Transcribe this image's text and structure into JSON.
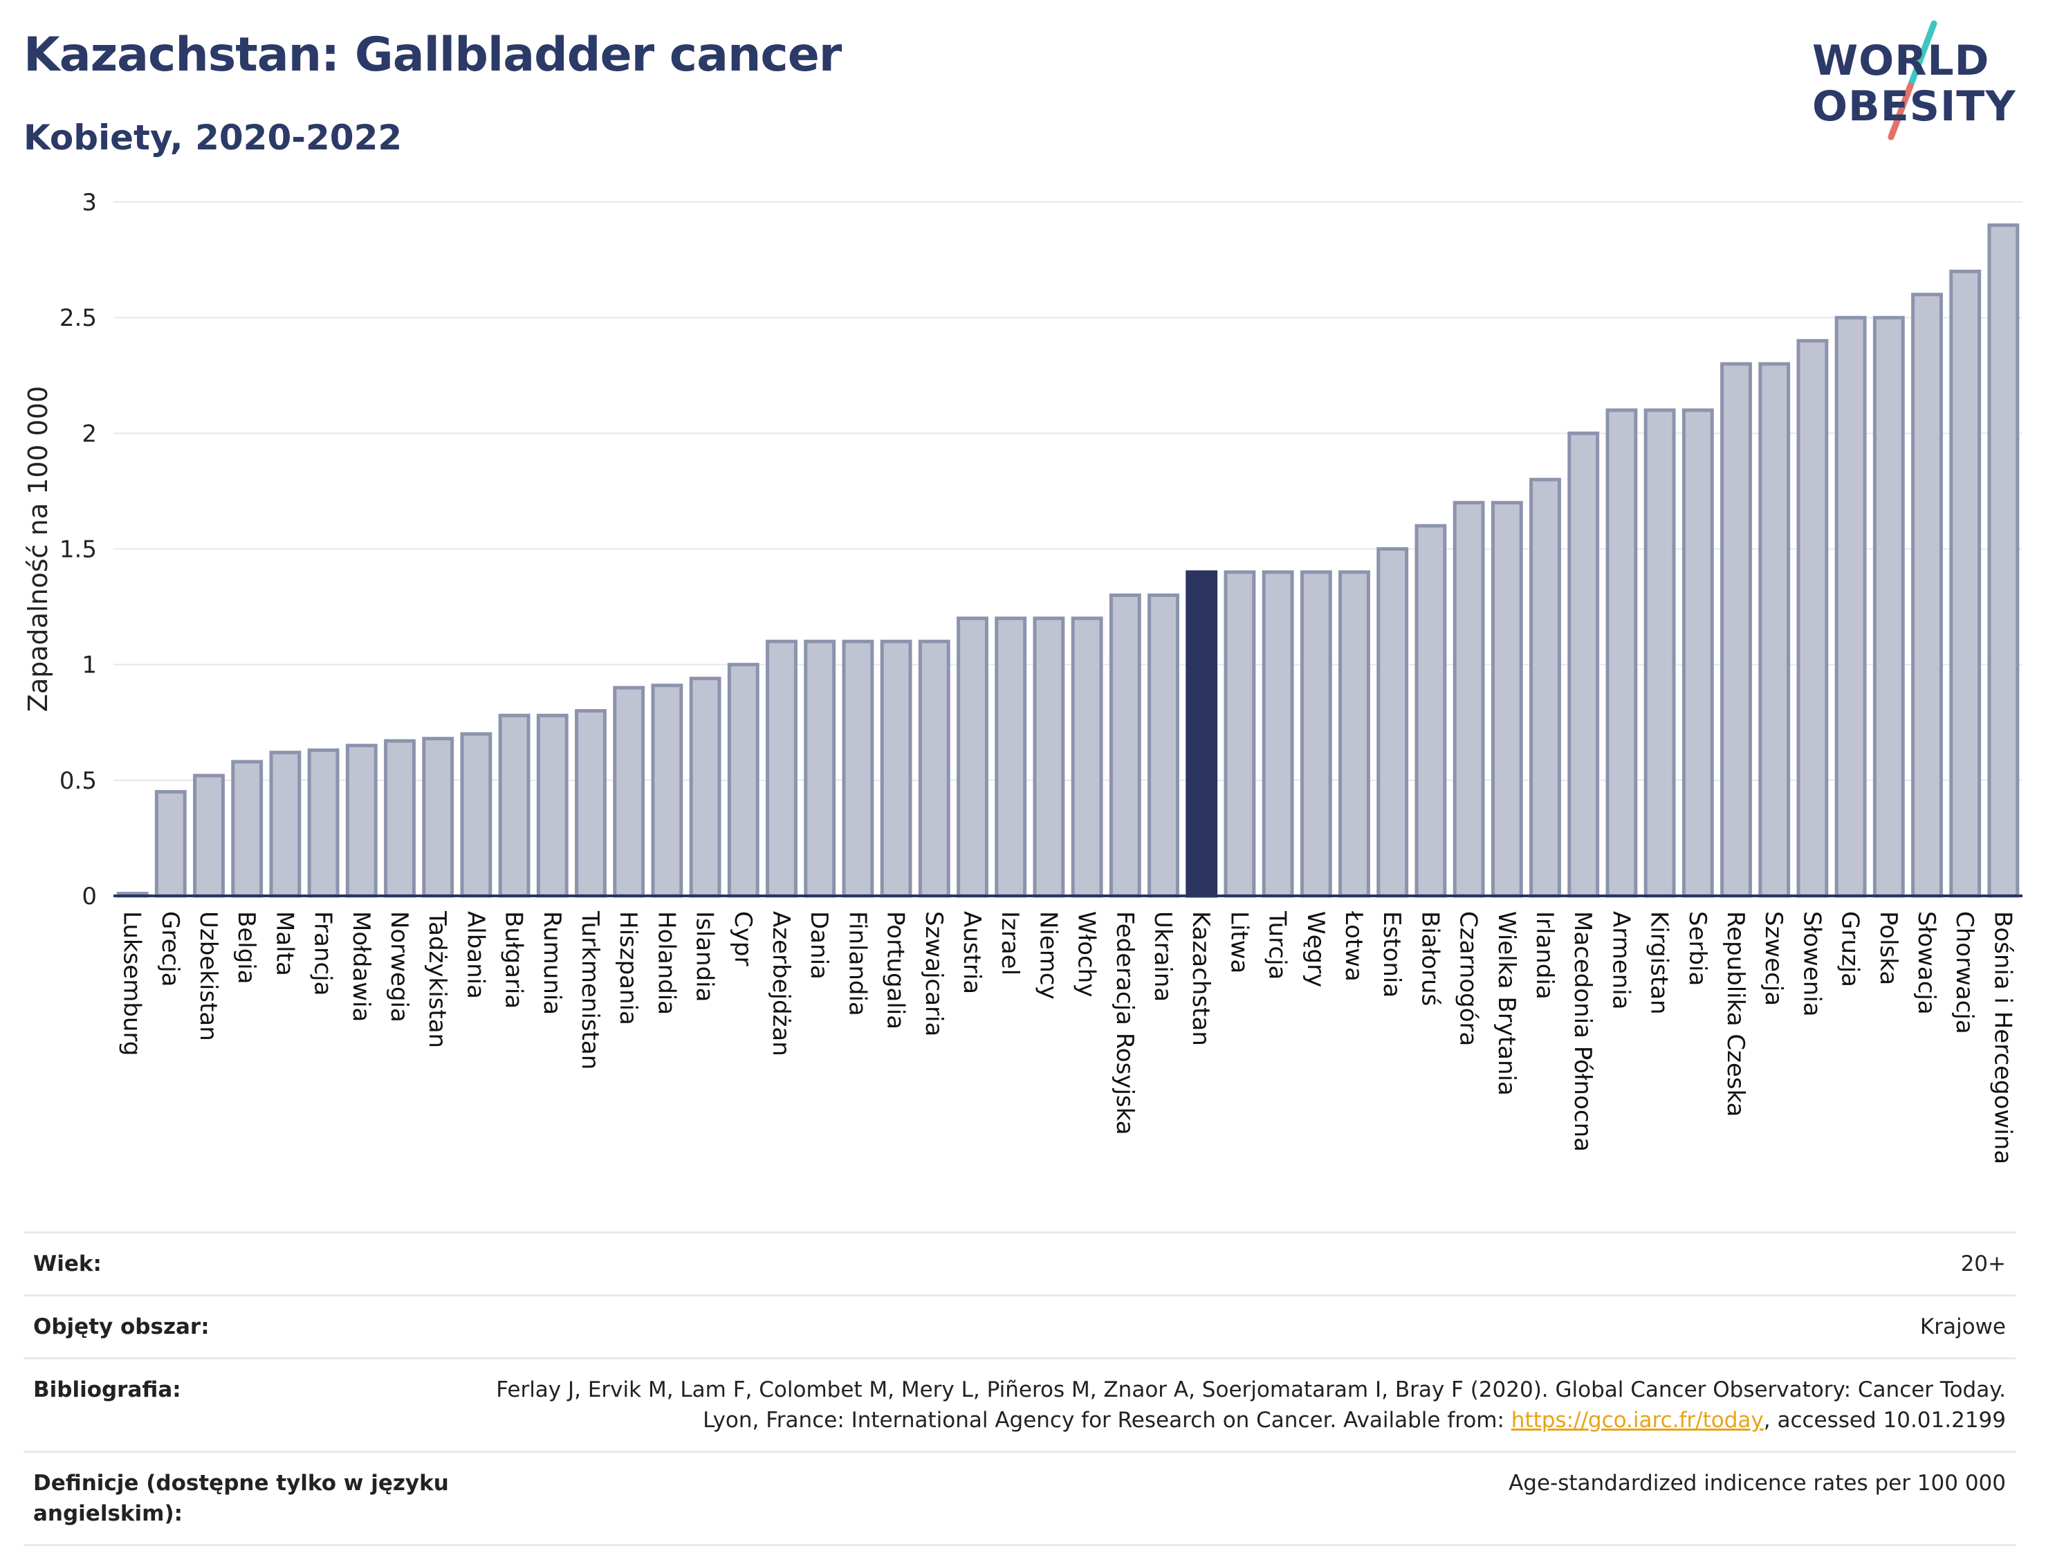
{
  "header": {
    "title": "Kazachstan: Gallbladder cancer",
    "subtitle": "Kobiety, 2020-2022"
  },
  "logo": {
    "line1": "WORLD",
    "line2": "OBESITY"
  },
  "colors": {
    "bar": "#bfc3d2",
    "bar_border": "#8c93ad",
    "highlight": "#2b3560",
    "text_dark": "#2b3a67",
    "accent_teal": "#3ec6c0",
    "accent_red": "#e8706a"
  },
  "chart_data": {
    "type": "bar",
    "ylabel": "Zapadalność na 100 000",
    "ylim": [
      0,
      3
    ],
    "yticks": [
      "0",
      "0.5",
      "1",
      "1.5",
      "2",
      "2.5",
      "3"
    ],
    "grid": true,
    "highlight": "Kazachstan",
    "categories": [
      "Luksemburg",
      "Grecja",
      "Uzbekistan",
      "Belgia",
      "Malta",
      "Francja",
      "Mołdawia",
      "Norwegia",
      "Tadżykistan",
      "Albania",
      "Bułgaria",
      "Rumunia",
      "Turkmenistan",
      "Hiszpania",
      "Holandia",
      "Islandia",
      "Cypr",
      "Azerbejdżan",
      "Dania",
      "Finlandia",
      "Portugalia",
      "Szwajcaria",
      "Austria",
      "Izrael",
      "Niemcy",
      "Włochy",
      "Federacja Rosyjska",
      "Ukraina",
      "Kazachstan",
      "Litwa",
      "Turcja",
      "Węgry",
      "Łotwa",
      "Estonia",
      "Białoruś",
      "Czarnogóra",
      "Wielka Brytania",
      "Irlandia",
      "Macedonia Północna",
      "Armenia",
      "Kirgistan",
      "Serbia",
      "Republika Czeska",
      "Szwecja",
      "Słowenia",
      "Gruzja",
      "Polska",
      "Słowacja",
      "Chorwacja",
      "Bośnia i Hercegowina"
    ],
    "values": [
      0.01,
      0.45,
      0.52,
      0.58,
      0.62,
      0.63,
      0.65,
      0.67,
      0.68,
      0.7,
      0.78,
      0.78,
      0.8,
      0.9,
      0.91,
      0.94,
      1.0,
      1.1,
      1.1,
      1.1,
      1.1,
      1.1,
      1.2,
      1.2,
      1.2,
      1.2,
      1.3,
      1.3,
      1.4,
      1.4,
      1.4,
      1.4,
      1.4,
      1.5,
      1.6,
      1.7,
      1.7,
      1.8,
      2.0,
      2.1,
      2.1,
      2.1,
      2.3,
      2.3,
      2.4,
      2.5,
      2.5,
      2.6,
      2.7,
      2.9
    ]
  },
  "meta": [
    {
      "label": "Wiek:",
      "value": "20+"
    },
    {
      "label": "Objęty obszar:",
      "value": "Krajowe"
    },
    {
      "label": "Bibliografia:",
      "value": "Ferlay J, Ervik M, Lam F, Colombet M, Mery L, Piñeros M, Znaor A, Soerjomataram I, Bray F (2020). Global Cancer Observatory: Cancer Today. Lyon, France: International Agency for Research on Cancer. Available from: ",
      "link": "https://gco.iarc.fr/today",
      "suffix": ", accessed 10.01.2199"
    },
    {
      "label": "Definicje (dostępne tylko w języku angielskim):",
      "value": "Age-standardized indicence rates per 100 000"
    }
  ]
}
